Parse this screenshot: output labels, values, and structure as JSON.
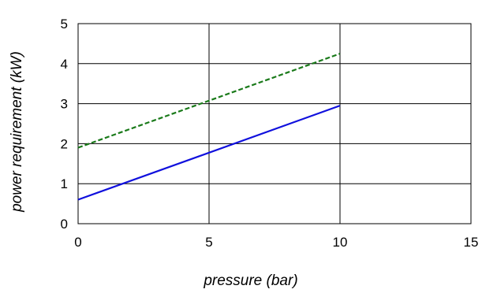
{
  "chart_data": {
    "type": "line",
    "title": "",
    "xlabel": "pressure (bar)",
    "ylabel": "power requirement (kW)",
    "xlim": [
      0,
      15
    ],
    "ylim": [
      0,
      5
    ],
    "x_ticks": [
      0,
      5,
      10,
      15
    ],
    "y_ticks": [
      0,
      1,
      2,
      3,
      4,
      5
    ],
    "grid": true,
    "legend": "none",
    "series": [
      {
        "color": "#1010dd",
        "style": "solid",
        "x": [
          0,
          10
        ],
        "y": [
          0.6,
          2.95
        ]
      },
      {
        "color": "#1a7a1a",
        "style": "dashed",
        "x": [
          0,
          10
        ],
        "y": [
          1.9,
          4.25
        ]
      }
    ]
  }
}
